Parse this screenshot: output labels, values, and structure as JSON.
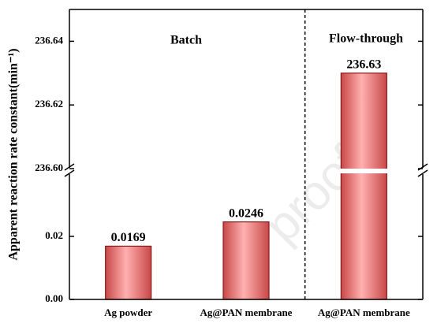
{
  "chart_data": {
    "type": "broken-bar",
    "y_label": "Apparent reaction rate constant(min⁻¹)",
    "annotations": [
      "Batch",
      "Flow-through"
    ],
    "watermark": "proof",
    "categories": [
      "Ag powder",
      "Ag@PAN membrane",
      "Ag@PAN membrane"
    ],
    "values": [
      0.0169,
      0.0246,
      236.63
    ],
    "color": "#f08a8a",
    "edge_color": "#8b1a1a",
    "ylim": [
      0,
      0.04
    ],
    "yticks": [
      {
        "value": 0,
        "label": "0.00"
      },
      0.02
    ],
    "y2lim": [
      236.6,
      236.65
    ],
    "y2ticks": [
      {
        "value": 236.6,
        "label": "236.60"
      },
      236.62,
      236.64
    ]
  }
}
